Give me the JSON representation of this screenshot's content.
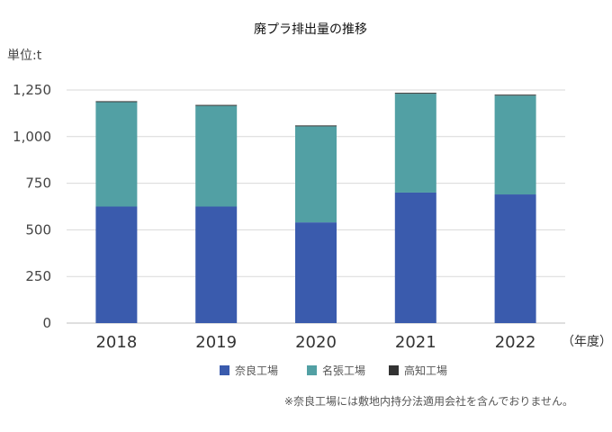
{
  "chart_data": {
    "type": "bar",
    "stacked": true,
    "title": "廃プラ排出量の推移",
    "unit_label": "単位:t",
    "xlabel": "",
    "x_unit_label": "（年度）",
    "ylabel": "",
    "ylim": [
      0,
      1250
    ],
    "yticks": [
      0,
      250,
      500,
      750,
      1000,
      1250
    ],
    "ytick_labels": [
      "0",
      "250",
      "500",
      "750",
      "1,000",
      "1,250"
    ],
    "categories": [
      "2018",
      "2019",
      "2020",
      "2021",
      "2022"
    ],
    "series": [
      {
        "name": "奈良工場",
        "color": "#3a5bad",
        "values": [
          625,
          625,
          540,
          700,
          690
        ]
      },
      {
        "name": "名張工場",
        "color": "#52a0a4",
        "values": [
          560,
          540,
          515,
          530,
          530
        ]
      },
      {
        "name": "高知工場",
        "color": "#333333",
        "values": [
          5,
          5,
          5,
          5,
          5
        ]
      }
    ],
    "legend_position": "bottom",
    "grid": true,
    "footnote": "※奈良工場には敷地内持分法適用会社を含んでおりません。"
  }
}
